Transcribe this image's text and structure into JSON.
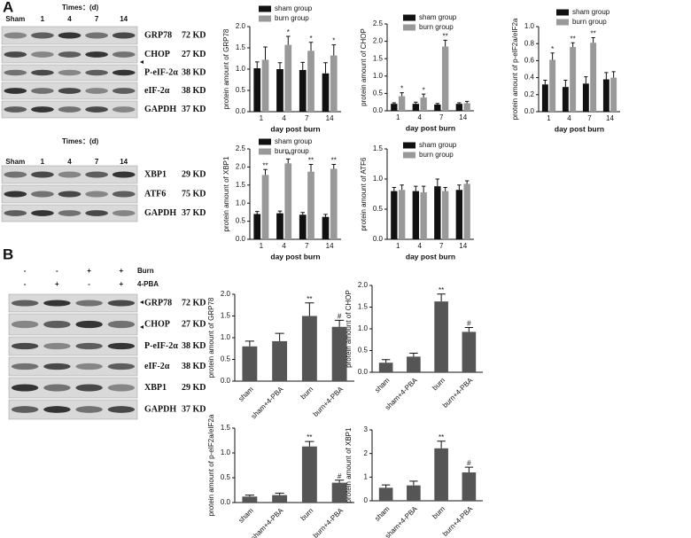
{
  "panels": [
    "A",
    "B"
  ],
  "blots": [
    {
      "times": "Times：(d)",
      "lanes": [
        "Sham",
        "1",
        "4",
        "7",
        "14"
      ],
      "rows": [
        {
          "protein": "GRP78",
          "kd": "72 KD"
        },
        {
          "protein": "CHOP",
          "kd": "27 KD"
        },
        {
          "protein": "P-eIF-2α",
          "kd": "38 KD"
        },
        {
          "protein": "eIF-2α",
          "kd": "38 KD"
        },
        {
          "protein": "GAPDH",
          "kd": "37 KD"
        }
      ]
    },
    {
      "times": "Times：(d)",
      "lanes": [
        "Sham",
        "1",
        "4",
        "7",
        "14"
      ],
      "rows": [
        {
          "protein": "XBP1",
          "kd": "29 KD"
        },
        {
          "protein": "ATF6",
          "kd": "75 KD"
        },
        {
          "protein": "GAPDH",
          "kd": "37 KD"
        }
      ]
    },
    {
      "conditions": [
        {
          "label": "Burn",
          "signs": [
            "-",
            "-",
            "+",
            "+"
          ]
        },
        {
          "label": "4-PBA",
          "signs": [
            "-",
            "+",
            "-",
            "+"
          ]
        }
      ],
      "rows": [
        {
          "protein": "GRP78",
          "kd": "72 KD"
        },
        {
          "protein": "CHOP",
          "kd": "27 KD"
        },
        {
          "protein": "P-eIF-2α",
          "kd": "38 KD"
        },
        {
          "protein": "eIF-2α",
          "kd": "38 KD"
        },
        {
          "protein": "XBP1",
          "kd": "29 KD"
        },
        {
          "protein": "GAPDH",
          "kd": "37 KD"
        }
      ]
    }
  ],
  "chart_data": [
    {
      "type": "bar",
      "ylabel": "protein amount of GRP78",
      "xlabel": "day post burn",
      "categories": [
        "1",
        "4",
        "7",
        "14"
      ],
      "ylim": [
        0,
        2
      ],
      "yticks": [
        {
          "value": 0,
          "label": "0.0"
        },
        0.5,
        {
          "value": 1,
          "label": "1.0"
        },
        1.5,
        {
          "value": 2,
          "label": "2.0"
        }
      ],
      "series": [
        {
          "name": "sham group",
          "color": "#111111",
          "values": [
            1.02,
            1.0,
            0.98,
            0.9
          ],
          "errors": [
            0.15,
            0.15,
            0.18,
            0.25
          ],
          "annotations": [
            null,
            null,
            null,
            null
          ]
        },
        {
          "name": "burn group",
          "color": "#999999",
          "values": [
            1.22,
            1.57,
            1.43,
            1.32
          ],
          "errors": [
            0.3,
            0.2,
            0.2,
            0.25
          ],
          "annotations": [
            null,
            "*",
            "*",
            "*"
          ]
        }
      ]
    },
    {
      "type": "bar",
      "ylabel": "protein amount of CHOP",
      "xlabel": "day post burn",
      "categories": [
        "1",
        "4",
        "7",
        "14"
      ],
      "ylim": [
        0,
        2.5
      ],
      "yticks": [
        {
          "value": 0,
          "label": "0.0"
        },
        0.5,
        {
          "value": 1,
          "label": "1.0"
        },
        1.5,
        {
          "value": 2,
          "label": "2.0"
        },
        2.5
      ],
      "series": [
        {
          "name": "sham group",
          "color": "#111111",
          "values": [
            0.2,
            0.2,
            0.18,
            0.2
          ],
          "errors": [
            0.03,
            0.05,
            0.03,
            0.03
          ],
          "annotations": [
            null,
            null,
            null,
            null
          ]
        },
        {
          "name": "burn group",
          "color": "#999999",
          "values": [
            0.42,
            0.38,
            1.85,
            0.22
          ],
          "errors": [
            0.1,
            0.1,
            0.18,
            0.05
          ],
          "annotations": [
            "*",
            "*",
            "**",
            null
          ]
        }
      ]
    },
    {
      "type": "bar",
      "ylabel": "protein amount of p-eIF2a/eIF2a",
      "xlabel": "day post burn",
      "categories": [
        "1",
        "4",
        "7",
        "14"
      ],
      "ylim": [
        0,
        1
      ],
      "yticks": [
        {
          "value": 0,
          "label": "0.0"
        },
        0.2,
        0.4,
        0.6,
        0.8,
        {
          "value": 1,
          "label": "1.0"
        }
      ],
      "series": [
        {
          "name": "sham group",
          "color": "#111111",
          "values": [
            0.32,
            0.29,
            0.33,
            0.38
          ],
          "errors": [
            0.05,
            0.08,
            0.08,
            0.08
          ],
          "annotations": [
            null,
            null,
            null,
            null
          ]
        },
        {
          "name": "burn group",
          "color": "#999999",
          "values": [
            0.61,
            0.76,
            0.81,
            0.4
          ],
          "errors": [
            0.08,
            0.05,
            0.06,
            0.07
          ],
          "annotations": [
            "*",
            "**",
            "**",
            null
          ]
        }
      ]
    },
    {
      "type": "bar",
      "ylabel": "protein amount of XBP1",
      "xlabel": "day post burn",
      "categories": [
        "1",
        "4",
        "7",
        "14"
      ],
      "ylim": [
        0,
        2.5
      ],
      "yticks": [
        {
          "value": 0,
          "label": "0.0"
        },
        0.5,
        {
          "value": 1,
          "label": "1.0"
        },
        1.5,
        {
          "value": 2,
          "label": "2.0"
        },
        2.5
      ],
      "series": [
        {
          "name": "sham group",
          "color": "#111111",
          "values": [
            0.7,
            0.72,
            0.68,
            0.62
          ],
          "errors": [
            0.07,
            0.06,
            0.06,
            0.07
          ],
          "annotations": [
            null,
            null,
            null,
            null
          ]
        },
        {
          "name": "burn group",
          "color": "#999999",
          "values": [
            1.78,
            2.1,
            1.87,
            1.95
          ],
          "errors": [
            0.15,
            0.12,
            0.2,
            0.12
          ],
          "annotations": [
            "**",
            "**",
            "**",
            "**"
          ]
        }
      ]
    },
    {
      "type": "bar",
      "ylabel": "protein amount of ATF6",
      "xlabel": "day post burn",
      "categories": [
        "1",
        "4",
        "7",
        "14"
      ],
      "ylim": [
        0,
        1.5
      ],
      "yticks": [
        {
          "value": 0,
          "label": "0.0"
        },
        0.5,
        {
          "value": 1,
          "label": "1.0"
        },
        1.5
      ],
      "series": [
        {
          "name": "sham group",
          "color": "#111111",
          "values": [
            0.8,
            0.8,
            0.88,
            0.82
          ],
          "errors": [
            0.06,
            0.08,
            0.12,
            0.08
          ],
          "annotations": [
            null,
            null,
            null,
            null
          ]
        },
        {
          "name": "burn group",
          "color": "#999999",
          "values": [
            0.82,
            0.78,
            0.8,
            0.92
          ],
          "errors": [
            0.08,
            0.1,
            0.06,
            0.05
          ],
          "annotations": [
            null,
            null,
            null,
            null
          ]
        }
      ]
    },
    {
      "type": "bar",
      "ylabel": "protein amount of GRP78",
      "categories": [
        "sham",
        "sham+4-PBA",
        "burn",
        "burn+4-PBA"
      ],
      "ylim": [
        0,
        2
      ],
      "yticks": [
        {
          "value": 0,
          "label": "0.0"
        },
        0.5,
        {
          "value": 1,
          "label": "1.0"
        },
        1.5,
        {
          "value": 2,
          "label": "2.0"
        }
      ],
      "color": "#555555",
      "values": [
        0.8,
        0.92,
        1.5,
        1.25
      ],
      "errors": [
        0.12,
        0.18,
        0.3,
        0.15
      ],
      "annotations": [
        null,
        null,
        "**",
        "#"
      ]
    },
    {
      "type": "bar",
      "ylabel": "protein amount of CHOP",
      "categories": [
        "sham",
        "sham+4-PBA",
        "burn",
        "burn+4-PBA"
      ],
      "ylim": [
        0,
        2
      ],
      "yticks": [
        {
          "value": 0,
          "label": "0.0"
        },
        0.5,
        {
          "value": 1,
          "label": "1.0"
        },
        1.5,
        {
          "value": 2,
          "label": "2.0"
        }
      ],
      "color": "#555555",
      "values": [
        0.22,
        0.36,
        1.63,
        0.93
      ],
      "errors": [
        0.07,
        0.08,
        0.17,
        0.1
      ],
      "annotations": [
        null,
        null,
        "**",
        "#"
      ]
    },
    {
      "type": "bar",
      "ylabel": "protein amount of p-eIF2a/eIF2a",
      "categories": [
        "sham",
        "sham+4-PBA",
        "burn",
        "burn+4-PBA"
      ],
      "ylim": [
        0,
        1.5
      ],
      "yticks": [
        {
          "value": 0,
          "label": "0.0"
        },
        0.5,
        {
          "value": 1,
          "label": "1.0"
        },
        1.5
      ],
      "color": "#555555",
      "values": [
        0.12,
        0.15,
        1.13,
        0.4
      ],
      "errors": [
        0.03,
        0.04,
        0.1,
        0.05
      ],
      "annotations": [
        null,
        null,
        "**",
        "#"
      ]
    },
    {
      "type": "bar",
      "ylabel": "protein amount of XBP1",
      "categories": [
        "sham",
        "sham+4-PBA",
        "burn",
        "burn+4-PBA"
      ],
      "ylim": [
        0,
        3
      ],
      "yticks": [
        0,
        1,
        2,
        3
      ],
      "color": "#555555",
      "values": [
        0.55,
        0.65,
        2.22,
        1.2
      ],
      "errors": [
        0.12,
        0.18,
        0.3,
        0.22
      ],
      "annotations": [
        null,
        null,
        "**",
        "#"
      ]
    }
  ]
}
